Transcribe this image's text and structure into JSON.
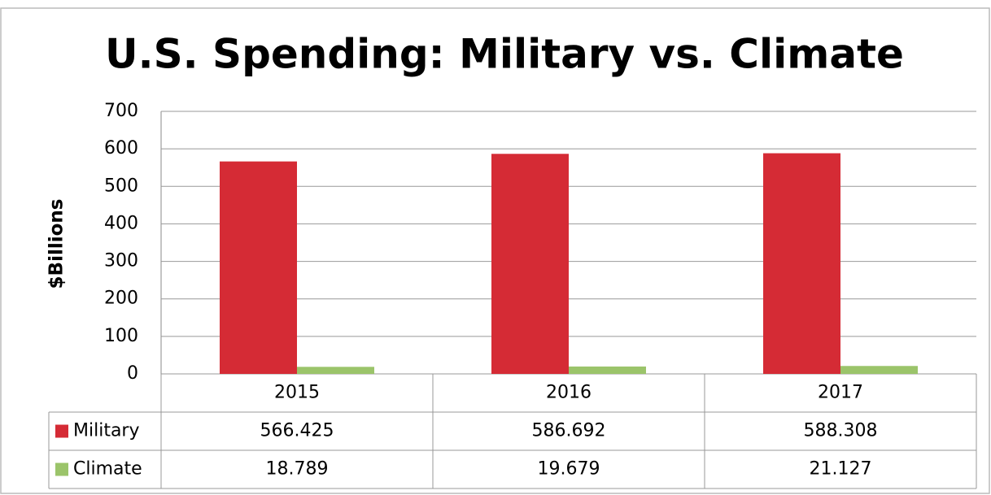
{
  "chart_data": {
    "type": "bar",
    "title": "U.S. Spending: Military vs. Climate",
    "y_label": "$Billions",
    "categories": [
      "2015",
      "2016",
      "2017"
    ],
    "series": [
      {
        "name": "Military",
        "color": "#d52b35",
        "values": [
          566.425,
          586.692,
          588.308
        ]
      },
      {
        "name": "Climate",
        "color": "#9bc46a",
        "values": [
          18.789,
          19.679,
          21.127
        ]
      }
    ],
    "ylim": [
      0,
      700
    ],
    "yticks": [
      0,
      100,
      200,
      300,
      400,
      500,
      600,
      700
    ],
    "grid": true,
    "data_table": true
  }
}
